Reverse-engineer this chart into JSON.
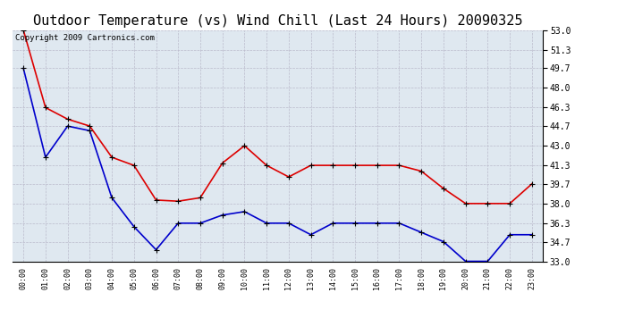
{
  "title": "Outdoor Temperature (vs) Wind Chill (Last 24 Hours) 20090325",
  "copyright_text": "Copyright 2009 Cartronics.com",
  "x_labels": [
    "00:00",
    "01:00",
    "02:00",
    "03:00",
    "04:00",
    "05:00",
    "06:00",
    "07:00",
    "08:00",
    "09:00",
    "10:00",
    "11:00",
    "12:00",
    "13:00",
    "14:00",
    "15:00",
    "16:00",
    "17:00",
    "18:00",
    "19:00",
    "20:00",
    "21:00",
    "22:00",
    "23:00"
  ],
  "temp_red": [
    53.0,
    46.3,
    45.3,
    44.7,
    42.0,
    41.3,
    38.3,
    38.2,
    38.5,
    41.5,
    43.0,
    41.3,
    40.3,
    41.3,
    41.3,
    41.3,
    41.3,
    41.3,
    40.8,
    39.3,
    38.0,
    38.0,
    38.0,
    39.7
  ],
  "temp_blue": [
    49.7,
    42.0,
    44.7,
    44.3,
    38.5,
    36.0,
    34.0,
    36.3,
    36.3,
    37.0,
    37.3,
    36.3,
    36.3,
    35.3,
    36.3,
    36.3,
    36.3,
    36.3,
    35.5,
    34.7,
    33.0,
    33.0,
    35.3,
    35.3
  ],
  "ylim": [
    33.0,
    53.0
  ],
  "yticks": [
    33.0,
    34.7,
    36.3,
    38.0,
    39.7,
    41.3,
    43.0,
    44.7,
    46.3,
    48.0,
    49.7,
    51.3,
    53.0
  ],
  "bg_color": "#ffffff",
  "plot_bg": "#dfe8f0",
  "line_color_red": "#dd0000",
  "line_color_blue": "#0000cc",
  "grid_color": "#bbbbcc",
  "title_fontsize": 11,
  "copyright_fontsize": 6.5
}
